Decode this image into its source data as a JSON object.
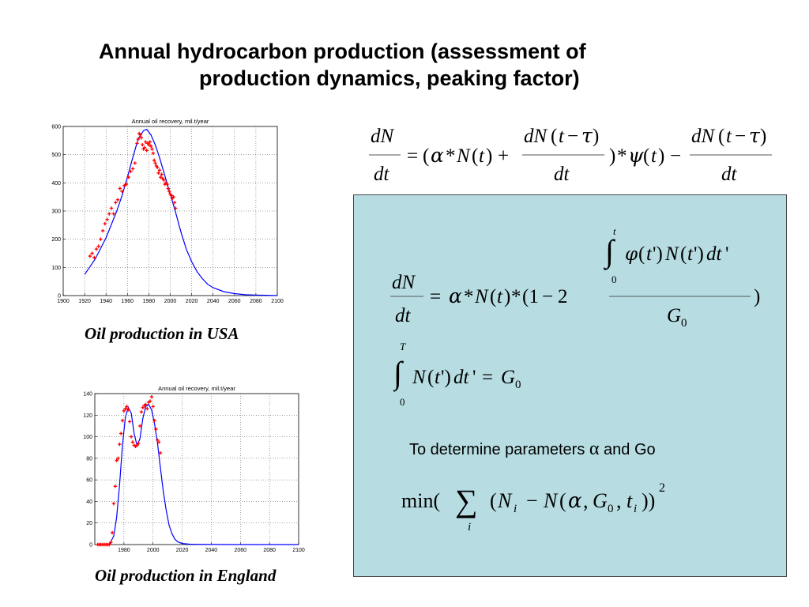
{
  "title": {
    "line1": "Annual hydrocarbon production (assessment of",
    "line2": "production dynamics, peaking factor)"
  },
  "chart_data": [
    {
      "type": "line",
      "title": "Annual oil recovery, mil.t/year",
      "xlim": [
        1900,
        2100
      ],
      "ylim": [
        0,
        600
      ],
      "xticks": [
        1900,
        1920,
        1940,
        1960,
        1980,
        2000,
        2020,
        2040,
        2060,
        2080,
        2100
      ],
      "yticks": [
        0,
        100,
        200,
        300,
        400,
        500,
        600
      ],
      "grid": true,
      "series": [
        {
          "kind": "line",
          "color": "#0000ff",
          "x": [
            1920,
            1930,
            1940,
            1950,
            1955,
            1960,
            1965,
            1970,
            1975,
            1978,
            1982,
            1986,
            1990,
            1995,
            2000,
            2005,
            2010,
            2015,
            2020,
            2025,
            2030,
            2035,
            2040,
            2050,
            2060,
            2070,
            2080,
            2090,
            2100
          ],
          "y": [
            75,
            130,
            205,
            300,
            355,
            420,
            490,
            555,
            585,
            590,
            570,
            535,
            490,
            425,
            360,
            295,
            225,
            165,
            120,
            85,
            60,
            40,
            28,
            14,
            7,
            3,
            2,
            1,
            0
          ]
        },
        {
          "kind": "scatter",
          "color": "#ff0000",
          "x": [
            1925,
            1927,
            1929,
            1931,
            1933,
            1935,
            1937,
            1939,
            1941,
            1943,
            1945,
            1947,
            1949,
            1951,
            1953,
            1955,
            1957,
            1959,
            1961,
            1963,
            1965,
            1967,
            1969,
            1970,
            1971,
            1972,
            1973,
            1974,
            1975,
            1976,
            1977,
            1978,
            1979,
            1980,
            1981,
            1982,
            1983,
            1984,
            1985,
            1986,
            1987,
            1988,
            1989,
            1990,
            1991,
            1992,
            1993,
            1994,
            1995,
            1996,
            1997,
            1998,
            1999,
            2000,
            2001,
            2002,
            2003,
            2004,
            2005
          ],
          "y": [
            140,
            150,
            135,
            165,
            175,
            200,
            230,
            255,
            270,
            290,
            310,
            290,
            330,
            340,
            380,
            370,
            390,
            395,
            420,
            440,
            450,
            470,
            540,
            555,
            575,
            570,
            560,
            535,
            520,
            525,
            545,
            515,
            540,
            535,
            545,
            530,
            520,
            505,
            480,
            470,
            460,
            455,
            435,
            445,
            420,
            430,
            415,
            410,
            395,
            400,
            395,
            380,
            370,
            360,
            355,
            345,
            350,
            330,
            310
          ]
        }
      ]
    },
    {
      "type": "line",
      "title": "Annual oil recovery, mil.t/year",
      "xlim": [
        1960,
        2100
      ],
      "ylim": [
        0,
        140
      ],
      "xticks": [
        1980,
        2000,
        2020,
        2040,
        2060,
        2080,
        2100
      ],
      "yticks": [
        0,
        20,
        40,
        60,
        80,
        100,
        120,
        140
      ],
      "grid": true,
      "series": [
        {
          "kind": "line",
          "color": "#0000ff",
          "x": [
            1970,
            1973,
            1975,
            1977,
            1979,
            1981,
            1983,
            1985,
            1987,
            1989,
            1991,
            1993,
            1995,
            1997,
            1999,
            2001,
            2003,
            2005,
            2007,
            2009,
            2011,
            2013,
            2015,
            2017,
            2020,
            2025,
            2030,
            2040,
            2060,
            2080,
            2100
          ],
          "y": [
            0,
            8,
            25,
            55,
            92,
            118,
            127,
            122,
            103,
            92,
            98,
            117,
            128,
            130,
            125,
            112,
            95,
            72,
            50,
            32,
            18,
            10,
            5,
            2.5,
            1,
            0.4,
            0.2,
            0.1,
            0,
            0,
            0
          ]
        },
        {
          "kind": "scatter",
          "color": "#ff0000",
          "x": [
            1962,
            1963,
            1964,
            1965,
            1966,
            1967,
            1968,
            1969,
            1970,
            1971,
            1972,
            1973,
            1974,
            1975,
            1976,
            1977,
            1978,
            1979,
            1980,
            1981,
            1982,
            1983,
            1984,
            1985,
            1986,
            1987,
            1988,
            1989,
            1990,
            1991,
            1992,
            1993,
            1994,
            1995,
            1996,
            1997,
            1998,
            1999,
            2000,
            2001,
            2002,
            2003,
            2004,
            2005
          ],
          "y": [
            0,
            0,
            0,
            0,
            0,
            0,
            0,
            0,
            0,
            2,
            11,
            38,
            54,
            78,
            80,
            93,
            103,
            115,
            124,
            126,
            128,
            125,
            114,
            100,
            95,
            92,
            91,
            92,
            94,
            110,
            123,
            127,
            129,
            130,
            126,
            132,
            133,
            137,
            128,
            115,
            107,
            97,
            95,
            85
          ]
        }
      ]
    }
  ],
  "captions": {
    "usa": "Oil production in USA",
    "england": "Oil production in England"
  },
  "note": {
    "text_before": "To determine parameters ",
    "symbol": "α",
    "text_after": " and Go"
  },
  "colors": {
    "panel_bg": "#b7dde2",
    "model_line": "#0000ff",
    "data_points": "#ff0000"
  }
}
